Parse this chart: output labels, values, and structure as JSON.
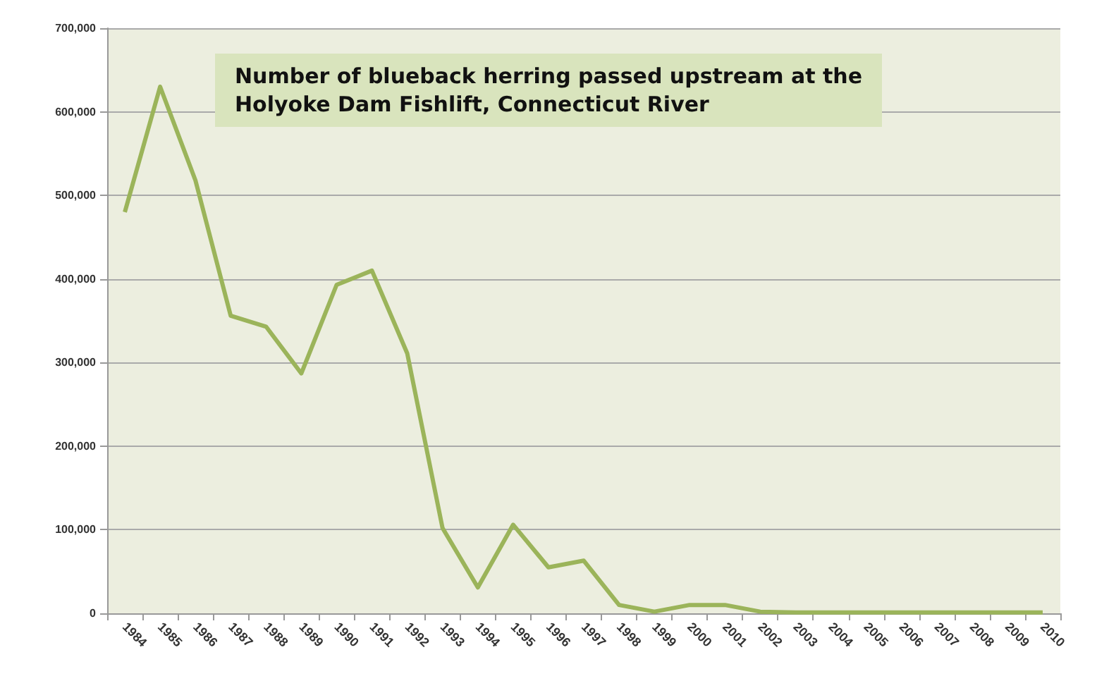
{
  "chart_data": {
    "type": "line",
    "title": "Number of blueback herring passed upstream at the\nHolyoke Dam Fishlift, Connecticut River",
    "categories": [
      "1984",
      "1985",
      "1986",
      "1987",
      "1988",
      "1989",
      "1990",
      "1991",
      "1992",
      "1993",
      "1994",
      "1995",
      "1996",
      "1997",
      "1998",
      "1999",
      "2000",
      "2001",
      "2002",
      "2003",
      "2004",
      "2005",
      "2006",
      "2007",
      "2008",
      "2009",
      "2010"
    ],
    "series": [
      {
        "color": "#9bb45a",
        "values": [
          480000,
          630000,
          518000,
          356000,
          343000,
          287000,
          393000,
          410000,
          311000,
          102000,
          31000,
          106000,
          55000,
          63000,
          10000,
          2000,
          10000,
          10000,
          2000,
          1000,
          1000,
          1000,
          1000,
          1000,
          1000,
          1000,
          1000
        ]
      }
    ],
    "ylim": [
      0,
      700000
    ],
    "yticks": [
      0,
      {
        "value": 100000,
        "label": "100,000"
      },
      {
        "value": 200000,
        "label": "200,000"
      },
      {
        "value": 300000,
        "label": "300,000"
      },
      {
        "value": 400000,
        "label": "400,000"
      },
      {
        "value": 500000,
        "label": "500,000"
      },
      {
        "value": 600000,
        "label": "600,000"
      },
      {
        "value": 700000,
        "label": "700,000"
      }
    ],
    "grid": "y",
    "marker": "none",
    "line_style": "solid"
  }
}
